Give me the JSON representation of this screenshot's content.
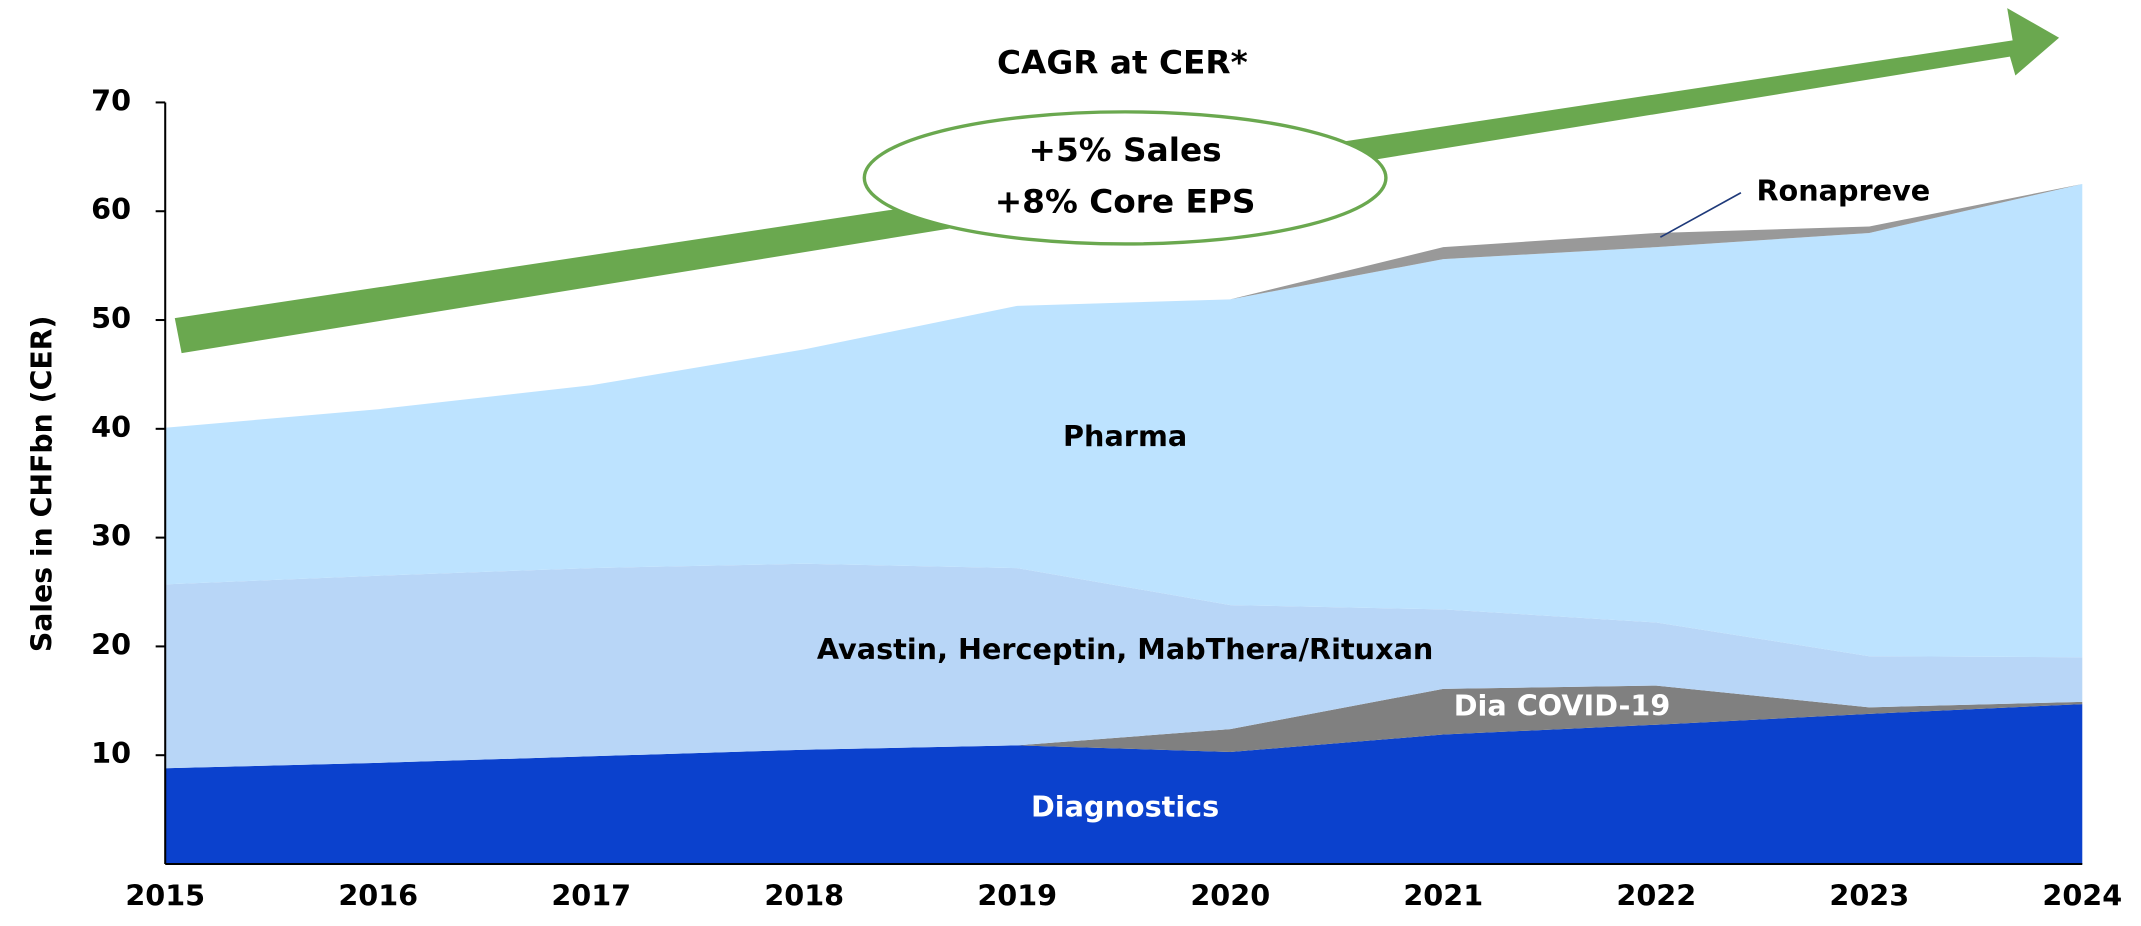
{
  "chart_data": {
    "type": "stacked_area",
    "title": "CAGR at CER*",
    "annotations": [
      "+5% Sales",
      "+8% Core EPS"
    ],
    "y_label": "Sales in CHFbn (CER)",
    "categories": [
      "2015",
      "2016",
      "2017",
      "2018",
      "2019",
      "2020",
      "2021",
      "2022",
      "2023",
      "2024"
    ],
    "ylim": [
      0,
      70
    ],
    "yticks": [
      10,
      20,
      30,
      40,
      50,
      60,
      70
    ],
    "series": [
      {
        "name": "Diagnostics",
        "color": "#0b41cd",
        "values": [
          8.8,
          9.3,
          9.9,
          10.5,
          10.9,
          10.3,
          11.9,
          12.8,
          13.8,
          14.7
        ]
      },
      {
        "name": "Dia COVID-19",
        "color": "#808080",
        "values": [
          0,
          0,
          0,
          0,
          0,
          2.1,
          4.2,
          3.6,
          0.6,
          0.2
        ]
      },
      {
        "name": "Avastin, Herceptin, MabThera/Rituxan",
        "color": "#b8d6f7",
        "values": [
          16.9,
          17.2,
          17.3,
          17.1,
          16.3,
          11.4,
          7.3,
          5.8,
          4.7,
          4.1
        ]
      },
      {
        "name": "Pharma",
        "color": "#bde3ff",
        "values": [
          14.4,
          15.3,
          16.8,
          19.7,
          24.1,
          28.1,
          32.2,
          34.5,
          38.9,
          43.5
        ]
      },
      {
        "name": "Ronapreve",
        "color": "#999999",
        "values": [
          0,
          0,
          0,
          0,
          0,
          0,
          1.1,
          1.3,
          0.6,
          0
        ]
      }
    ]
  }
}
